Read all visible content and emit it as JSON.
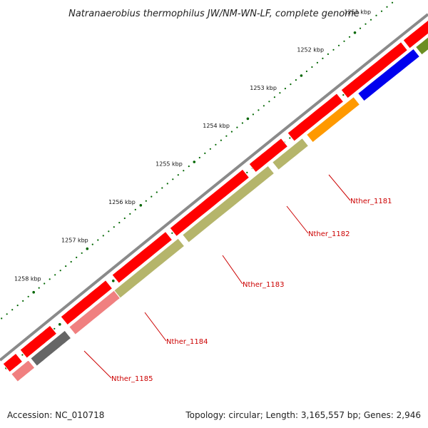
{
  "title": "Natranaerobius thermophilus JW/NM-WN-LF, complete genome",
  "footer": {
    "accession": "Accession: NC_010718",
    "summary": "Topology: circular; Length: 3,165,557 bp; Genes: 2,946"
  },
  "colors": {
    "backbone": "#8a8a8a",
    "forward_cds": "#ff0000",
    "reverse_cds_olive": "#b5b56b",
    "reverse_cds_orange": "#ff9900",
    "reverse_cds_blue": "#0000ee",
    "reverse_cds_green": "#6b8e23",
    "reverse_cds_pink": "#f08080",
    "reverse_cds_gray": "#666666",
    "tick": "#006600",
    "label": "#cc0000"
  },
  "ticks": [
    {
      "label": "1251 kbp"
    },
    {
      "label": "1252 kbp"
    },
    {
      "label": "1253 kbp"
    },
    {
      "label": "1254 kbp"
    },
    {
      "label": "1255 kbp"
    },
    {
      "label": "1256 kbp"
    },
    {
      "label": "1257 kbp"
    },
    {
      "label": "1258 kbp"
    }
  ],
  "gene_labels": [
    {
      "name": "Nther_1181"
    },
    {
      "name": "Nther_1182"
    },
    {
      "name": "Nther_1183"
    },
    {
      "name": "Nther_1184"
    },
    {
      "name": "Nther_1185"
    }
  ]
}
